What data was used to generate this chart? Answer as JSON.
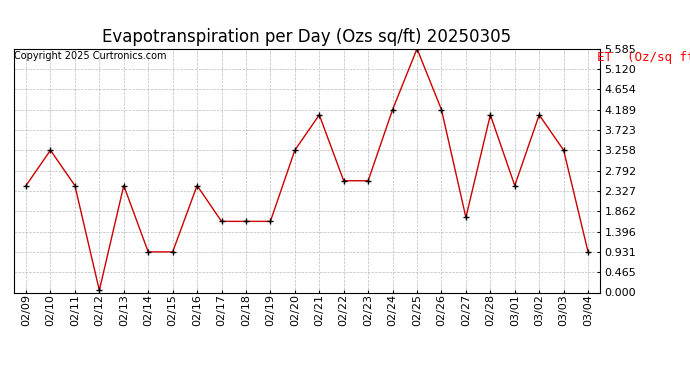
{
  "title": "Evapotranspiration per Day (Ozs sq/ft) 20250305",
  "copyright": "Copyright 2025 Curtronics.com",
  "legend_label": "ET  (Oz/sq ft)",
  "dates": [
    "02/09",
    "02/10",
    "02/11",
    "02/12",
    "02/13",
    "02/14",
    "02/15",
    "02/16",
    "02/17",
    "02/18",
    "02/19",
    "02/20",
    "02/21",
    "02/22",
    "02/23",
    "02/24",
    "02/25",
    "02/26",
    "02/27",
    "02/28",
    "03/01",
    "03/02",
    "03/03",
    "03/04"
  ],
  "values": [
    2.45,
    3.26,
    2.45,
    0.05,
    2.45,
    0.93,
    0.93,
    2.45,
    1.63,
    1.63,
    1.63,
    3.26,
    4.07,
    2.56,
    2.56,
    4.19,
    5.585,
    4.19,
    1.72,
    4.07,
    2.45,
    4.07,
    3.26,
    0.93
  ],
  "line_color": "#cc0000",
  "marker": "+",
  "marker_color": "black",
  "background_color": "#ffffff",
  "grid_color": "#aaaaaa",
  "ylim": [
    0.0,
    5.585
  ],
  "yticks": [
    0.0,
    0.465,
    0.931,
    1.396,
    1.862,
    2.327,
    2.792,
    3.258,
    3.723,
    4.189,
    4.654,
    5.12,
    5.585
  ],
  "title_fontsize": 12,
  "tick_fontsize": 8,
  "legend_fontsize": 9,
  "copyright_fontsize": 7
}
